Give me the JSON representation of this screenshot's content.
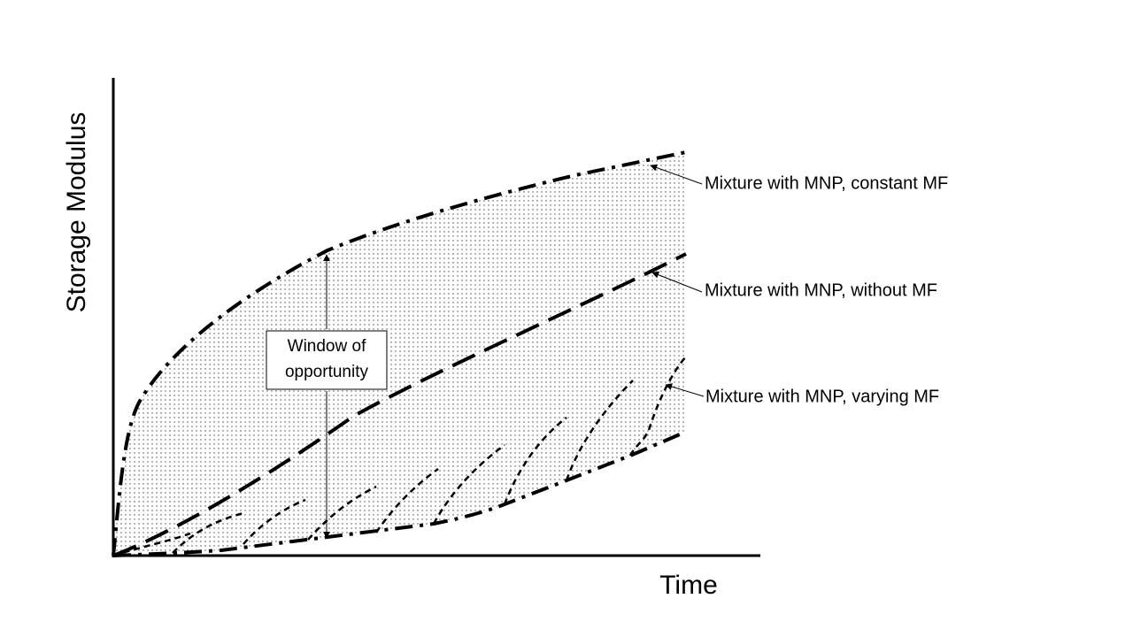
{
  "axes": {
    "y_label": "Storage Modulus",
    "x_label": "Time"
  },
  "labels": [
    "Mixture with MNP, constant MF",
    "Mixture with MNP, without MF",
    "Mixture with MNP, varying MF"
  ],
  "window": {
    "lines": [
      "Window of",
      "opportunity"
    ]
  }
}
